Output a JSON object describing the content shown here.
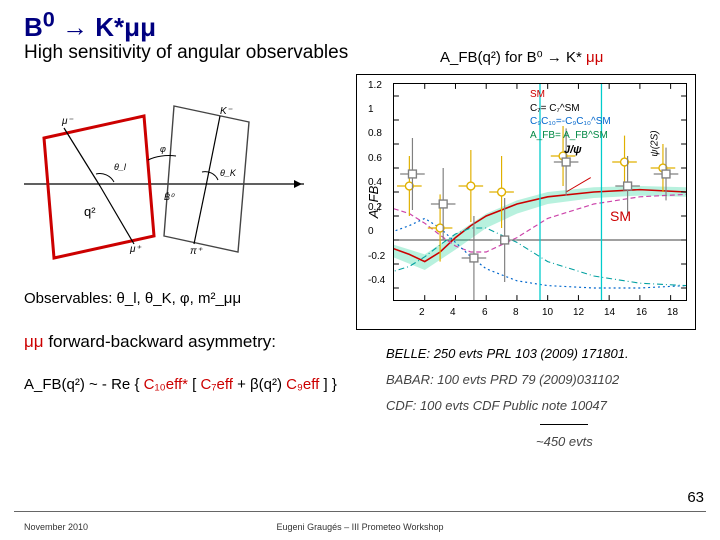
{
  "title": {
    "prefix": "B",
    "sup": "0",
    "arrow": " → ",
    "tail": "K*μμ"
  },
  "subtitle": "High sensitivity of angular observables",
  "diagram": {
    "q2_label": "q²",
    "particles": [
      "K⁻",
      "μ⁻",
      "θ_l",
      "θ_K",
      "B̄⁰",
      "φ",
      "μ⁺",
      "π⁺"
    ]
  },
  "observables_label": "Observables: θ_l, θ_K, φ, m²_μμ",
  "asymmetry_label_pre": "μμ",
  "asymmetry_label_post": " forward-backward asymmetry:",
  "formula": {
    "afb": "A_FB(q²) ~ - Re { ",
    "c10": "C₁₀eff*",
    "bracket1": " [ ",
    "c7": "C₇eff",
    "plus": "  +  β(q²) ",
    "c9": "C₉eff",
    "bracket2": " ] }"
  },
  "chart": {
    "title_pre": "A_FB(q²) for  B⁰ → K* ",
    "title_red": "μμ",
    "type": "scatter-with-curves",
    "ylabel": "A_FB",
    "xlim": [
      0,
      19
    ],
    "ylim": [
      -0.5,
      1.3
    ],
    "xticks": [
      2,
      4,
      6,
      8,
      10,
      12,
      14,
      16,
      18
    ],
    "yticks": [
      -0.4,
      -0.2,
      0,
      0.2,
      0.4,
      0.6,
      0.8,
      1,
      1.2
    ],
    "background_color": "#ffffff",
    "legend": {
      "sm": "SM",
      "c7": "C₇= C₇^SM",
      "cc": "C₉C₁₀=-C₉C₁₀^SM",
      "af": "A_FB= A_FB^SM"
    },
    "annotations": {
      "sm": "SM",
      "jpsi": "J/ψ",
      "psi2s": "ψ(2S)"
    },
    "curves": {
      "sm_color": "#cc0000",
      "alt1_color": "#0066cc",
      "alt2_color": "#00a0a0",
      "band_color": "#00cc88"
    },
    "data_circle": {
      "color": "#e0b000",
      "x": [
        1,
        3,
        5,
        7,
        11,
        15,
        17.5
      ],
      "y": [
        0.45,
        0.1,
        0.45,
        0.4,
        0.7,
        0.65,
        0.6
      ],
      "yerr": [
        0.25,
        0.28,
        0.3,
        0.3,
        0.25,
        0.22,
        0.2
      ]
    },
    "data_square": {
      "color": "#808080",
      "x": [
        1.2,
        3.2,
        5.2,
        7.2,
        11.2,
        15.2,
        17.7
      ],
      "y": [
        0.55,
        0.3,
        -0.15,
        0.0,
        0.65,
        0.45,
        0.55
      ],
      "yerr": [
        0.3,
        0.3,
        0.35,
        0.35,
        0.28,
        0.25,
        0.22
      ]
    },
    "vlines": {
      "jpsi_x": 9.5,
      "psi2s_x": 13.5,
      "color": "#00cccc"
    }
  },
  "refs": {
    "belle": "BELLE: 250 evts PRL 103 (2009) 171801.",
    "babar": "BABAR: 100 evts PRD 79 (2009)031102",
    "cdf": "CDF:     100 evts CDF Public note 10047",
    "sum": "~450 evts"
  },
  "page_number": "63",
  "footer": {
    "left": "November 2010",
    "center": "Eugeni Graugés – III Prometeo Workshop"
  }
}
